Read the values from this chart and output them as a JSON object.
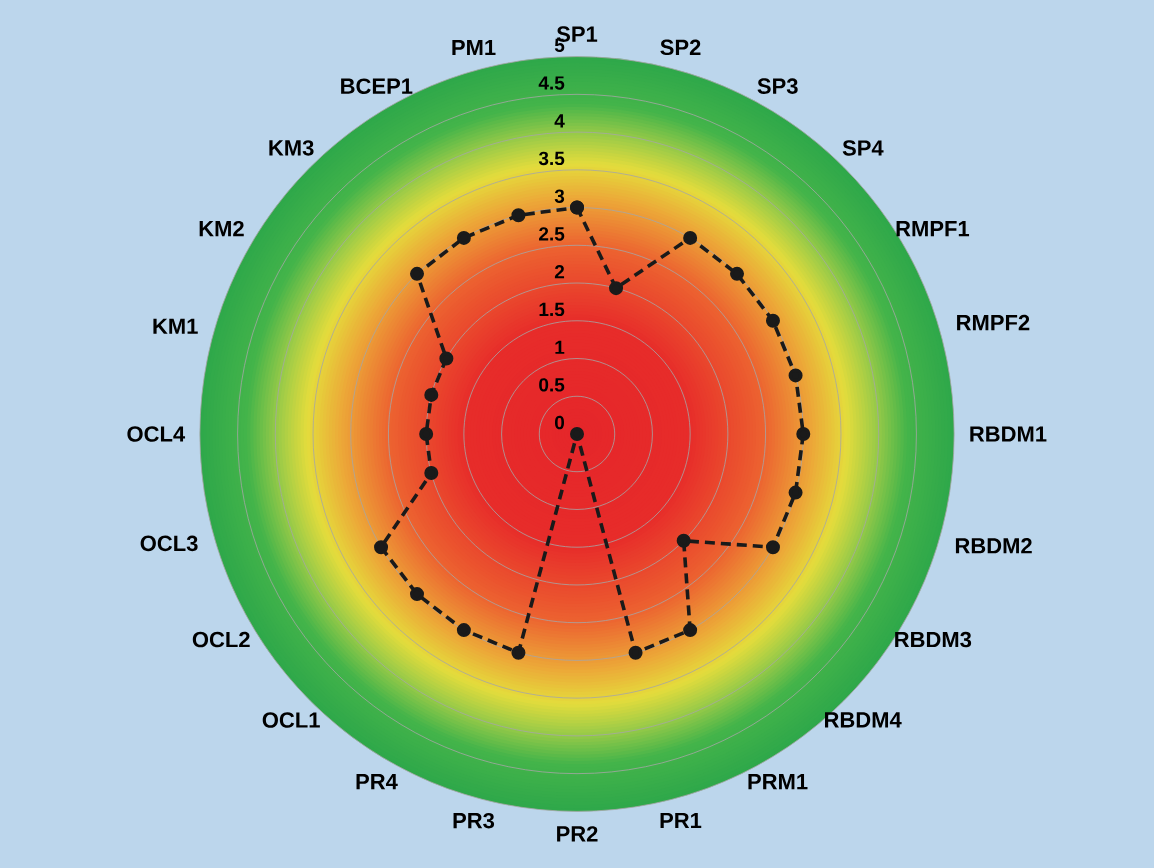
{
  "chart_data": {
    "type": "radar",
    "categories": [
      "SP1",
      "SP2",
      "SP3",
      "SP4",
      "RMPF1",
      "RMPF2",
      "RBDM1",
      "RBDM2",
      "RBDM3",
      "RBDM4",
      "PRM1",
      "PR1",
      "PR2",
      "PR3",
      "PR4",
      "OCL1",
      "OCL2",
      "OCL3",
      "OCL4",
      "KM1",
      "KM2",
      "KM3",
      "BCEP1",
      "PM1"
    ],
    "series": [
      {
        "color": "#1a1a1a",
        "values": [
          3,
          2,
          3,
          3,
          3,
          3,
          3,
          3,
          3,
          2,
          3,
          3,
          0,
          3,
          3,
          3,
          3,
          2,
          2,
          2,
          2,
          3,
          3,
          3
        ]
      }
    ],
    "ylim": [
      0,
      5
    ],
    "yticks": [
      0,
      0.5,
      1,
      1.5,
      2,
      2.5,
      3,
      3.5,
      4,
      4.5,
      5
    ],
    "grid": true,
    "marker": "circle",
    "line_style": "dashed"
  }
}
